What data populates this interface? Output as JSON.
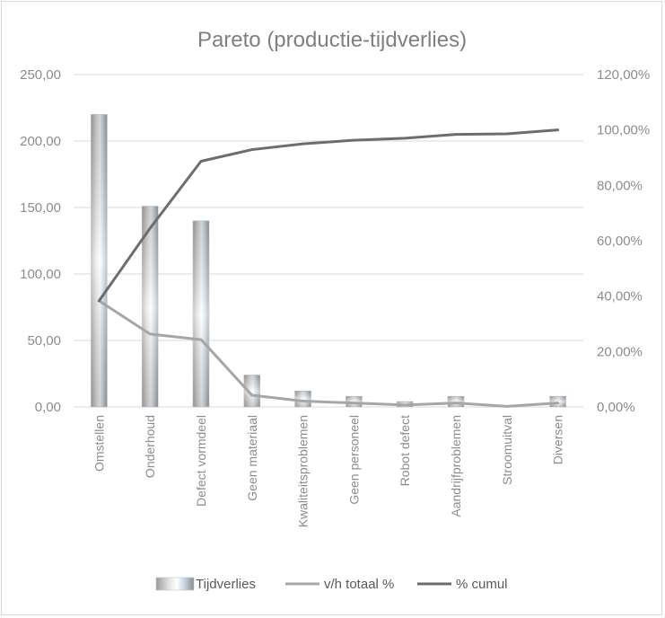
{
  "chart_data": {
    "type": "bar",
    "title": "Pareto (productie-tijdverlies)",
    "categories": [
      "Omstellen",
      "Onderhoud",
      "Defect vormdeel",
      "Geen materiaal",
      "Kwaliteitsproblemen",
      "Geen personeel",
      "Robot defect",
      "Aandrijfproblemen",
      "Stroomuitval",
      "Diversen"
    ],
    "y_left": {
      "ticks": [
        "0,00",
        "50,00",
        "100,00",
        "150,00",
        "200,00",
        "250,00"
      ],
      "ylim": [
        0,
        250
      ]
    },
    "y_right": {
      "ticks": [
        "0,00%",
        "20,00%",
        "40,00%",
        "60,00%",
        "80,00%",
        "100,00%",
        "120,00%"
      ],
      "ylim": [
        0,
        120
      ]
    },
    "series": [
      {
        "name": "Tijdverlies",
        "kind": "bar",
        "axis": "left",
        "color": "#a6a6a6",
        "values": [
          220,
          151,
          140,
          24,
          12,
          8,
          4,
          8,
          1,
          8
        ]
      },
      {
        "name": "v/h totaal %",
        "kind": "line",
        "axis": "right",
        "color": "#a6a6a6",
        "values": [
          38.3,
          26.3,
          24.3,
          4.2,
          2.1,
          1.4,
          0.7,
          1.4,
          0.2,
          1.4
        ]
      },
      {
        "name": "% cumul",
        "kind": "line",
        "axis": "right",
        "color": "#6d6d6d",
        "values": [
          38.3,
          64.5,
          88.7,
          92.9,
          95.0,
          96.3,
          97.0,
          98.4,
          98.6,
          100.0
        ]
      }
    ],
    "grid": true,
    "legend_position": "bottom"
  }
}
